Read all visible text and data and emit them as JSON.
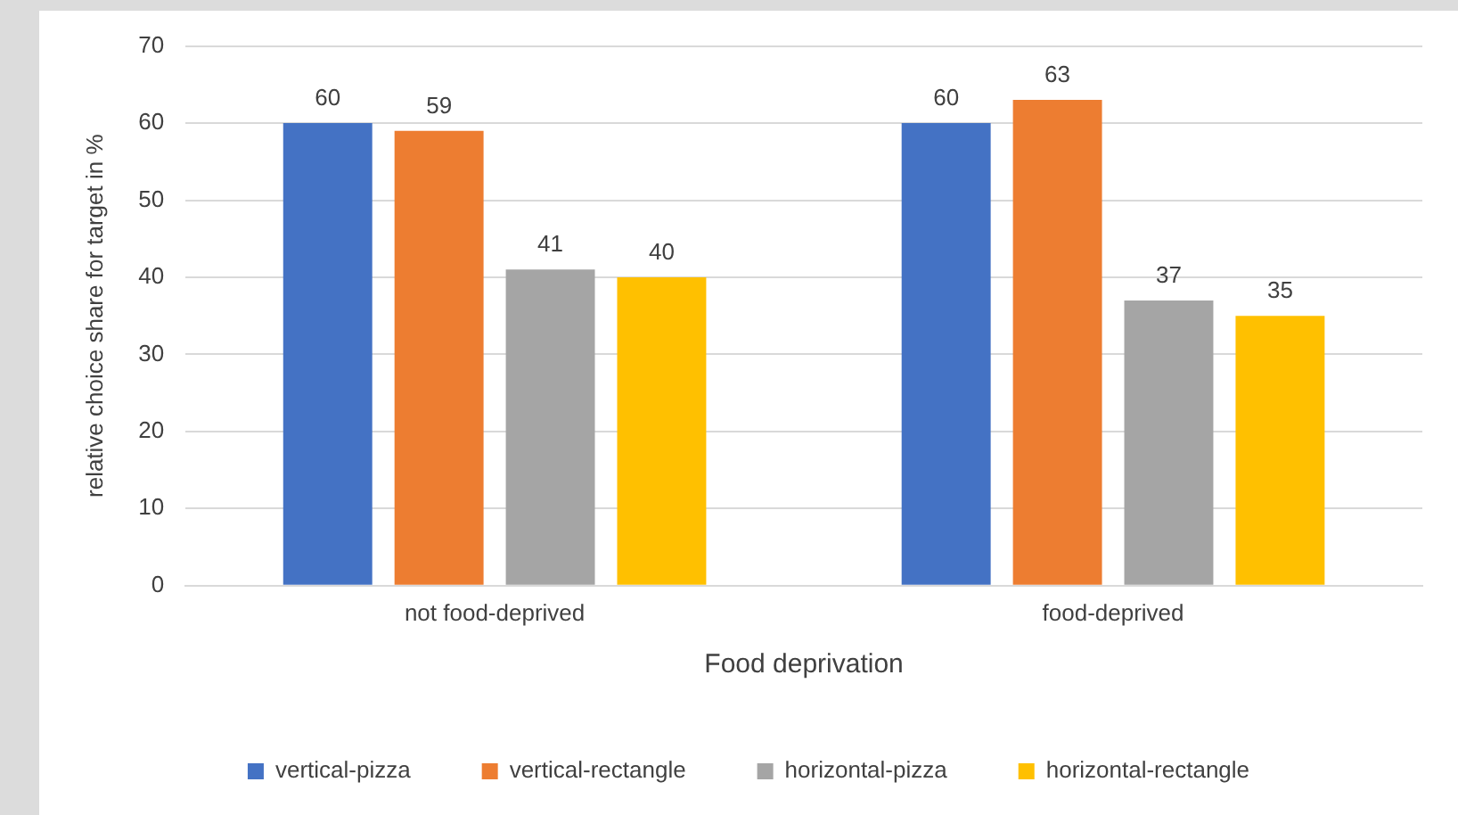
{
  "chart_data": {
    "type": "bar",
    "xlabel": "Food deprivation",
    "ylabel": "relative choice share for target in %",
    "categories": [
      "not food-deprived",
      "food-deprived"
    ],
    "series": [
      {
        "name": "vertical-pizza",
        "color": "#4472c4",
        "values": [
          60,
          60
        ]
      },
      {
        "name": "vertical-rectangle",
        "color": "#ed7d31",
        "values": [
          59,
          63
        ]
      },
      {
        "name": "horizontal-pizza",
        "color": "#a5a5a5",
        "values": [
          41,
          37
        ]
      },
      {
        "name": "horizontal-rectangle",
        "color": "#ffc000",
        "values": [
          40,
          35
        ]
      }
    ],
    "ylim": [
      0,
      70
    ],
    "yticks": [
      0,
      10,
      20,
      30,
      40,
      50,
      60,
      70
    ],
    "grid": "y",
    "legend": "bottom",
    "data_labels": true
  }
}
